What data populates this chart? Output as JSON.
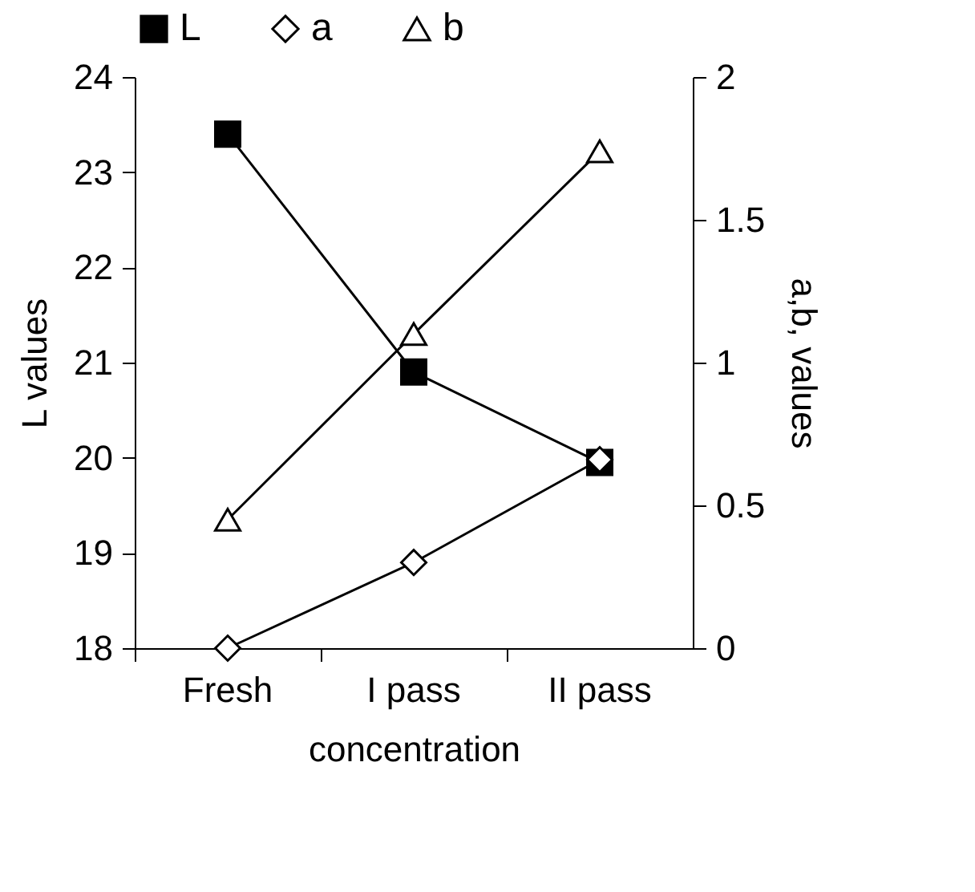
{
  "chart_data": {
    "type": "line",
    "xlabel": "concentration",
    "ylabel": "L values",
    "y2label": "a,b, values",
    "categories": [
      "Fresh",
      "I pass",
      "II pass"
    ],
    "series": [
      {
        "name": "L",
        "color": "#000000",
        "values": [
          23.4,
          20.9,
          19.95
        ],
        "marker": "square"
      },
      {
        "name": "a",
        "color": "#000000",
        "values": [
          0,
          0.3,
          0.66
        ],
        "axis": "y2",
        "marker": "diamond"
      },
      {
        "name": "b",
        "color": "#000000",
        "values": [
          0.45,
          1.1,
          1.74
        ],
        "axis": "y2",
        "marker": "triangle"
      }
    ],
    "ylim": [
      18,
      24
    ],
    "yticks": [
      18,
      19,
      20,
      21,
      22,
      23,
      24
    ],
    "y2lim": [
      0,
      2
    ],
    "y2ticks": [
      0,
      0.5,
      1,
      1.5,
      2
    ],
    "grid": false,
    "legend": "top",
    "line_style": "solid"
  }
}
